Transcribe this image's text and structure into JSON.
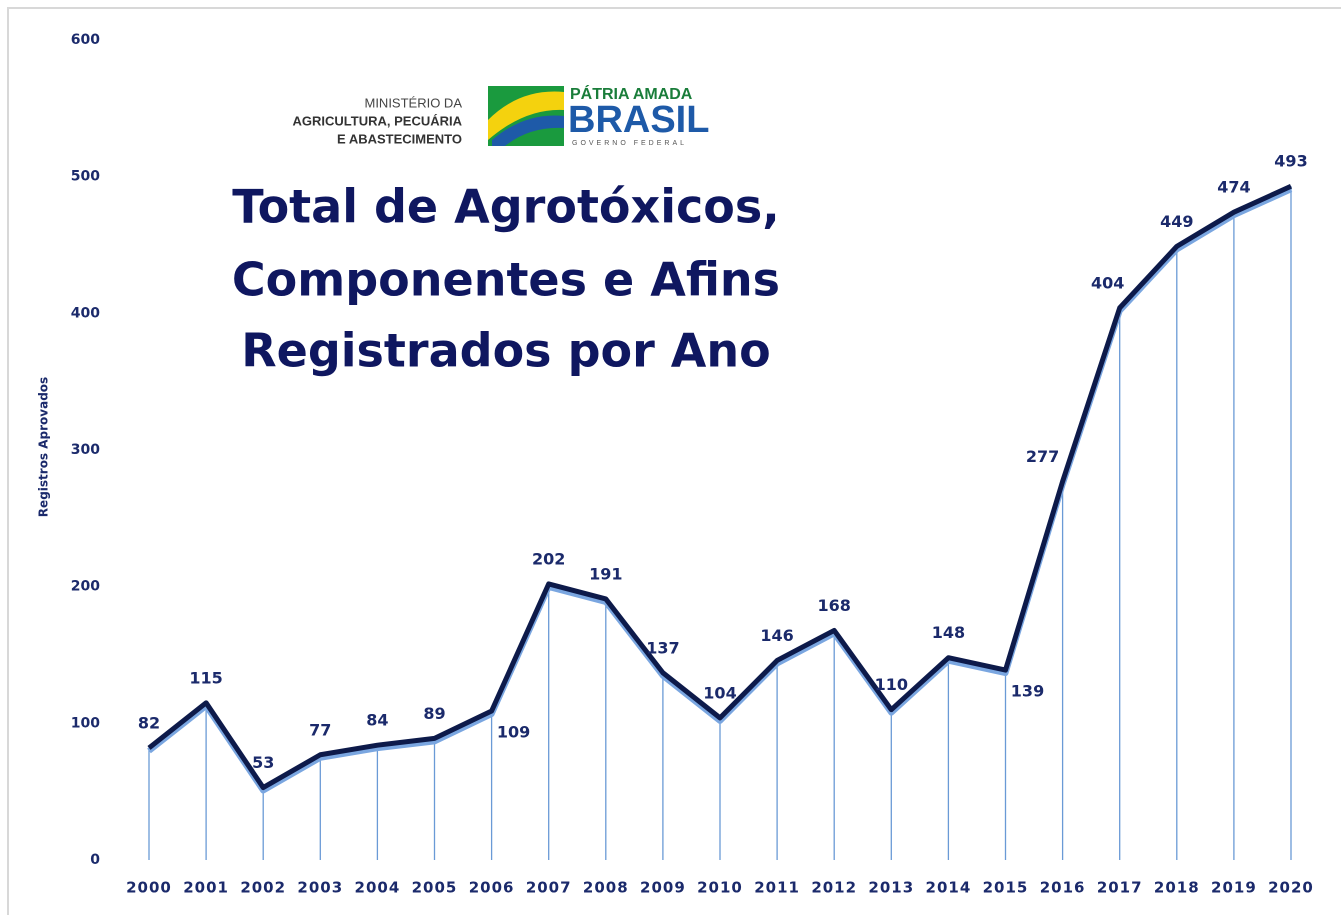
{
  "chart_data": {
    "type": "line",
    "title_lines": [
      "Total de Agrotóxicos,",
      "Componentes e Afins",
      "Registrados por Ano"
    ],
    "ylabel": "Registros Aprovados",
    "logo": {
      "ministry": [
        "MINISTÉRIO DA",
        "AGRICULTURA, PECUÁRIA",
        "E ABASTECIMENTO"
      ],
      "slogan": "PÁTRIA AMADA",
      "brand": "BRASIL",
      "sub": "GOVERNO FEDERAL"
    },
    "categories": [
      "2000",
      "2001",
      "2002",
      "2003",
      "2004",
      "2005",
      "2006",
      "2007",
      "2008",
      "2009",
      "2010",
      "2011",
      "2012",
      "2013",
      "2014",
      "2015",
      "2016",
      "2017",
      "2018",
      "2019",
      "2020"
    ],
    "values": [
      82,
      115,
      53,
      77,
      84,
      89,
      109,
      202,
      191,
      137,
      104,
      146,
      168,
      110,
      148,
      139,
      277,
      404,
      449,
      474,
      493
    ],
    "color": "#0d1a4a",
    "ylim": [
      0,
      600
    ],
    "yticks": [
      0,
      100,
      200,
      300,
      400,
      500,
      600
    ],
    "drop_lines": true
  }
}
